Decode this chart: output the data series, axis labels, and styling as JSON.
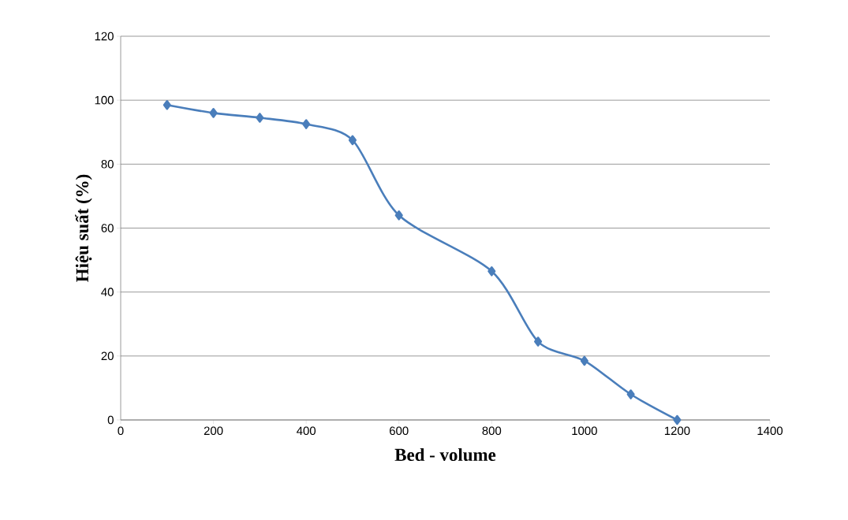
{
  "chart_data": {
    "type": "line",
    "xlabel": "Bed - volume",
    "ylabel": "Hiệu suất (%)",
    "x": [
      100,
      200,
      300,
      400,
      500,
      600,
      800,
      900,
      1000,
      1100,
      1200
    ],
    "series": [
      {
        "color": "#4a7ebb",
        "values": [
          98.5,
          96,
          94.5,
          92.5,
          87.5,
          64,
          46.5,
          24.5,
          18.5,
          8,
          0
        ]
      }
    ],
    "xlim": [
      0,
      1400
    ],
    "ylim": [
      0,
      120
    ],
    "xticks": [
      0,
      200,
      400,
      600,
      800,
      1000,
      1200,
      1400
    ],
    "yticks": [
      0,
      20,
      40,
      60,
      80,
      100,
      120
    ],
    "grid": "y",
    "marker": "diamond",
    "line_style": "solid"
  }
}
